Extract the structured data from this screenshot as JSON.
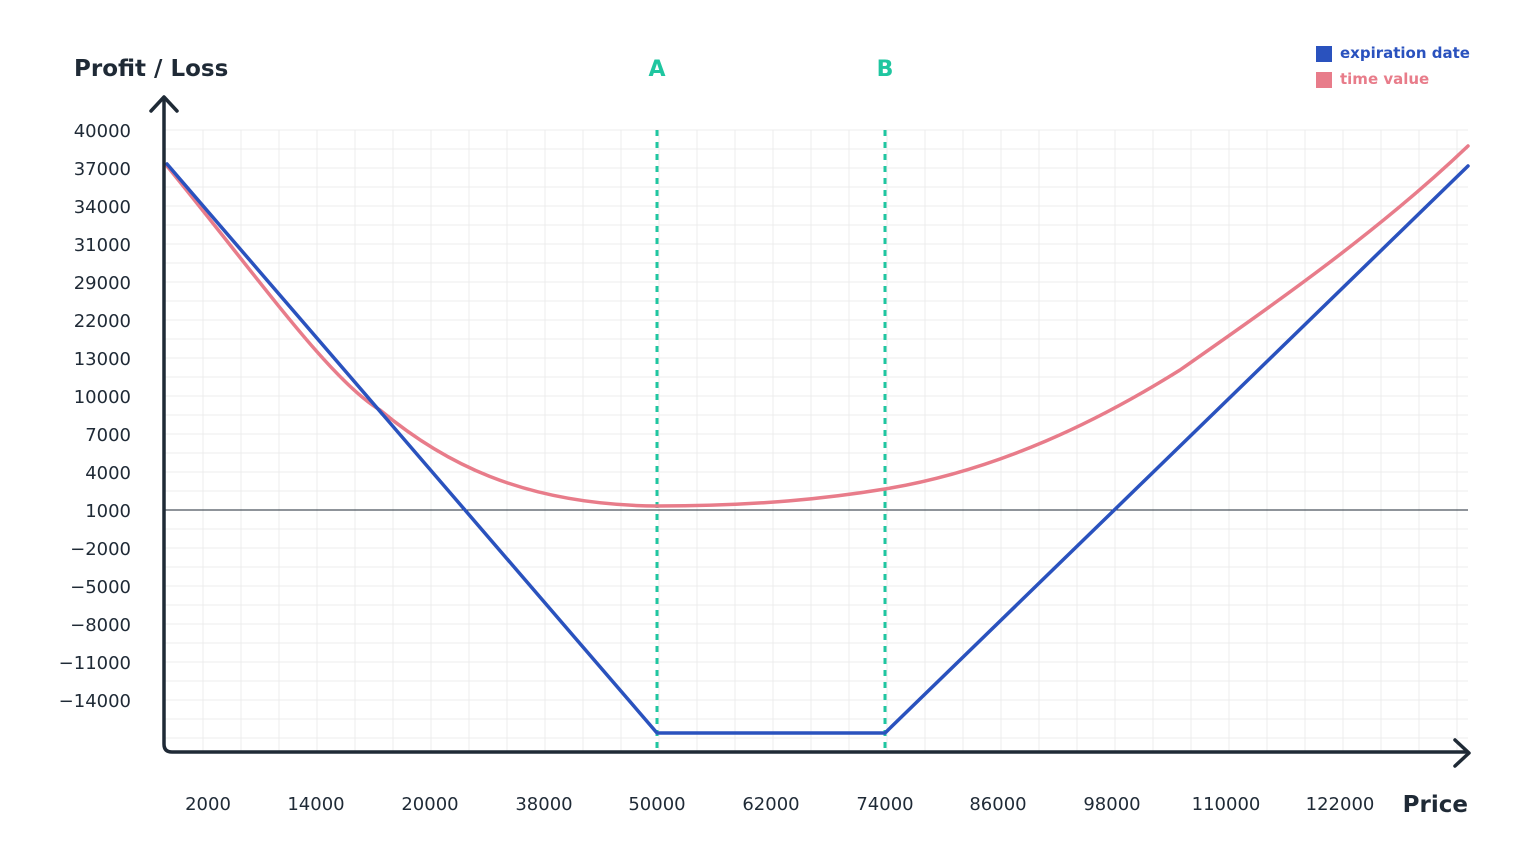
{
  "chart_data": {
    "type": "line",
    "xlabel": "Price",
    "ylabel": "Profit / Loss",
    "x_ticks": [
      "2000",
      "14000",
      "20000",
      "38000",
      "50000",
      "62000",
      "74000",
      "86000",
      "98000",
      "110000",
      "122000"
    ],
    "y_ticks": [
      "40000",
      "37000",
      "34000",
      "31000",
      "29000",
      "22000",
      "13000",
      "10000",
      "7000",
      "4000",
      "1000",
      "−2000",
      "−5000",
      "−8000",
      "−11000",
      "−14000"
    ],
    "baseline": "1000",
    "markers": [
      {
        "label": "A",
        "x": "50000"
      },
      {
        "label": "B",
        "x": "74000"
      }
    ],
    "legend_position": "top-right",
    "grid": true,
    "series": [
      {
        "name": "expiration date",
        "color": "#2a52be",
        "points": [
          [
            "2000",
            "37000"
          ],
          [
            "50000",
            "-17000"
          ],
          [
            "74000",
            "-17000"
          ],
          [
            "110000+",
            "37000"
          ]
        ]
      },
      {
        "name": "time value",
        "color": "#e87c8a",
        "points": [
          [
            "2000",
            "37000"
          ],
          [
            "20000",
            "7000"
          ],
          [
            "50000",
            "1200"
          ],
          [
            "74000",
            "2500"
          ],
          [
            "98000",
            "10000"
          ],
          [
            "110000+",
            "38500"
          ]
        ]
      }
    ]
  },
  "colors": {
    "axis": "#1f2a36",
    "grid": "#ececec",
    "marker": "#1fc6a0",
    "expiration": "#2a52be",
    "time_value": "#e87c8a"
  }
}
